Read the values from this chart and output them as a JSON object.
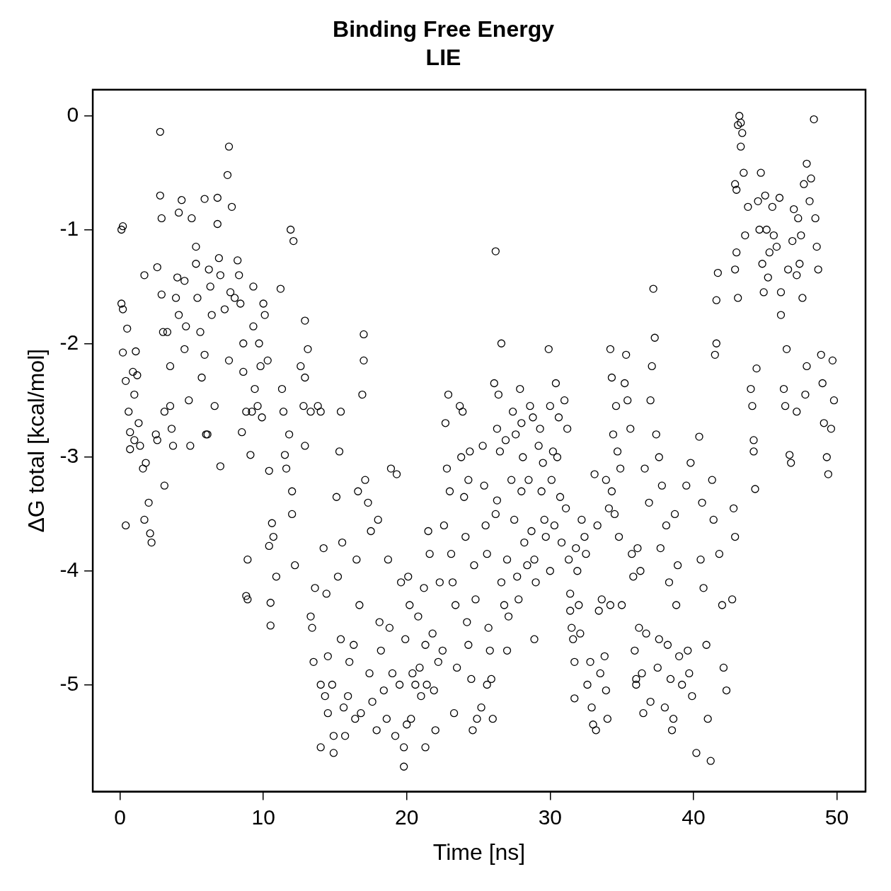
{
  "chart_data": {
    "type": "scatter",
    "title": "Binding Free Energy",
    "subtitle": "LIE",
    "xlabel": "Time [ns]",
    "ylabel": "ΔG total [kcal/mol]",
    "xlim": [
      -1.9,
      52
    ],
    "ylim": [
      -5.94,
      0.23
    ],
    "xticks": [
      0,
      10,
      20,
      30,
      40,
      50
    ],
    "yticks": [
      -5,
      -4,
      -3,
      -2,
      -1,
      0
    ],
    "marker": "circle",
    "legend": false,
    "grid": false,
    "series": [
      {
        "color": "#000000",
        "x": [
          0.1,
          0.2,
          0.1,
          0.2,
          0.2,
          0.4,
          0.5,
          0.6,
          0.7,
          0.7,
          0.4,
          0.9,
          1.0,
          1.0,
          1.1,
          1.2,
          1.3,
          1.4,
          1.6,
          1.8,
          2.0,
          1.7,
          2.1,
          2.2,
          1.7,
          2.5,
          2.6,
          2.6,
          2.8,
          2.8,
          2.9,
          2.9,
          3.0,
          3.1,
          3.1,
          3.3,
          3.5,
          3.5,
          3.6,
          3.7,
          3.9,
          4.1,
          4.0,
          4.1,
          4.3,
          4.5,
          4.6,
          4.5,
          4.8,
          4.9,
          5.3,
          5.3,
          5.0,
          5.4,
          5.6,
          5.9,
          5.7,
          6.0,
          5.9,
          6.2,
          6.3,
          6.4,
          6.6,
          6.1,
          6.8,
          6.8,
          6.9,
          7.0,
          7.3,
          7.0,
          7.6,
          7.5,
          7.8,
          7.7,
          7.6,
          8.0,
          8.2,
          8.3,
          8.4,
          8.6,
          8.6,
          8.8,
          8.5,
          8.9,
          8.9,
          8.8,
          9.3,
          9.3,
          9.4,
          9.2,
          9.1,
          9.7,
          9.8,
          9.6,
          9.9,
          10.0,
          10.1,
          10.3,
          10.4,
          10.4,
          10.6,
          10.5,
          10.5,
          10.7,
          10.9,
          11.2,
          11.3,
          11.4,
          11.5,
          11.6,
          11.9,
          12.1,
          11.8,
          12.0,
          12.0,
          12.2,
          12.6,
          12.8,
          12.9,
          12.9,
          13.1,
          12.9,
          13.3,
          13.3,
          13.4,
          13.5,
          13.6,
          14.0,
          14.0,
          14.3,
          14.5,
          14.5,
          13.8,
          14.0,
          14.2,
          14.4,
          14.8,
          14.9,
          14.9,
          15.1,
          15.2,
          15.4,
          15.6,
          15.7,
          15.4,
          15.3,
          15.5,
          15.9,
          16.0,
          16.3,
          16.4,
          16.6,
          16.5,
          16.7,
          16.8,
          17.0,
          17.0,
          16.9,
          17.1,
          17.3,
          17.5,
          17.4,
          17.6,
          17.9,
          18.0,
          18.1,
          18.2,
          18.4,
          18.6,
          18.9,
          18.7,
          18.8,
          19.0,
          19.2,
          19.3,
          19.6,
          19.5,
          19.8,
          19.8,
          19.9,
          20.0,
          20.1,
          20.2,
          20.4,
          20.3,
          20.6,
          20.8,
          20.9,
          21.0,
          21.2,
          21.3,
          21.4,
          21.3,
          21.5,
          21.6,
          21.8,
          21.9,
          22.0,
          22.2,
          22.3,
          22.5,
          22.6,
          22.8,
          22.9,
          22.7,
          23.0,
          23.1,
          23.2,
          23.4,
          23.5,
          23.3,
          23.7,
          23.9,
          23.8,
          24.0,
          24.1,
          24.2,
          24.3,
          24.5,
          24.6,
          24.4,
          24.3,
          24.7,
          24.8,
          24.9,
          25.2,
          25.3,
          25.4,
          25.5,
          25.6,
          25.7,
          25.8,
          25.9,
          25.6,
          26.0,
          26.2,
          26.1,
          26.4,
          26.3,
          26.5,
          26.3,
          26.2,
          26.6,
          26.8,
          26.6,
          26.9,
          27.0,
          27.1,
          27.0,
          27.4,
          27.6,
          27.3,
          27.5,
          27.7,
          27.8,
          27.9,
          28.0,
          28.1,
          28.0,
          28.2,
          28.4,
          28.6,
          28.8,
          28.5,
          28.7,
          28.9,
          29.0,
          28.9,
          29.3,
          29.2,
          29.5,
          29.4,
          29.6,
          29.7,
          29.9,
          30.0,
          30.2,
          30.1,
          30.3,
          30.0,
          30.4,
          30.6,
          30.5,
          30.7,
          30.8,
          31.0,
          31.2,
          31.1,
          31.3,
          31.4,
          31.6,
          31.4,
          31.5,
          31.7,
          31.8,
          31.9,
          32.0,
          31.7,
          32.2,
          32.1,
          32.4,
          32.6,
          32.5,
          32.8,
          32.9,
          33.0,
          33.1,
          33.3,
          33.4,
          33.5,
          33.2,
          33.6,
          33.8,
          33.9,
          34.0,
          33.9,
          34.1,
          34.2,
          34.2,
          34.3,
          34.4,
          34.3,
          34.5,
          34.6,
          34.7,
          34.9,
          34.8,
          35.0,
          35.3,
          35.2,
          35.4,
          35.6,
          35.7,
          35.8,
          35.9,
          36.0,
          36.1,
          36.3,
          36.2,
          36.0,
          36.5,
          36.6,
          36.9,
          36.7,
          36.4,
          37.0,
          37.2,
          37.3,
          37.1,
          37.0,
          37.4,
          37.6,
          37.8,
          37.7,
          37.6,
          37.5,
          38.0,
          38.1,
          38.3,
          38.2,
          38.4,
          38.6,
          38.7,
          38.9,
          38.8,
          39.0,
          39.2,
          38.5,
          39.5,
          39.8,
          39.6,
          39.7,
          39.9,
          40.2,
          40.4,
          40.6,
          40.5,
          40.7,
          40.9,
          41.0,
          41.2,
          41.6,
          41.5,
          41.6,
          41.7,
          41.3,
          41.4,
          41.8,
          42.0,
          42.1,
          42.3,
          42.7,
          42.8,
          42.9,
          43.1,
          43.2,
          43.3,
          43.4,
          43.3,
          42.9,
          43.0,
          43.0,
          42.9,
          43.1,
          43.6,
          43.5,
          43.8,
          44.0,
          44.1,
          44.2,
          44.2,
          44.3,
          44.7,
          44.5,
          44.6,
          44.8,
          44.9,
          44.4,
          45.0,
          45.1,
          45.3,
          45.2,
          45.5,
          45.6,
          45.8,
          46.0,
          46.1,
          46.1,
          46.3,
          46.5,
          46.4,
          46.7,
          46.8,
          46.6,
          46.9,
          47.2,
          47.0,
          47.3,
          47.7,
          47.9,
          47.6,
          47.5,
          47.4,
          47.9,
          47.8,
          47.2,
          48.2,
          48.4,
          48.1,
          48.5,
          48.6,
          48.7,
          48.9,
          49.0,
          49.1,
          49.3,
          49.4,
          49.7,
          49.8,
          49.6
        ],
        "values": [
          -1.0,
          -0.97,
          -1.65,
          -1.7,
          -2.08,
          -2.33,
          -1.87,
          -2.6,
          -2.78,
          -2.93,
          -3.6,
          -2.25,
          -2.45,
          -2.85,
          -2.07,
          -2.28,
          -2.7,
          -2.9,
          -3.1,
          -3.05,
          -3.4,
          -3.55,
          -3.67,
          -3.75,
          -1.4,
          -2.8,
          -2.85,
          -1.33,
          -0.7,
          -0.14,
          -0.9,
          -1.57,
          -1.9,
          -2.6,
          -3.25,
          -1.9,
          -2.2,
          -2.55,
          -2.75,
          -2.9,
          -1.6,
          -1.75,
          -1.42,
          -0.85,
          -0.74,
          -1.45,
          -1.85,
          -2.05,
          -2.5,
          -2.9,
          -1.15,
          -1.3,
          -0.9,
          -1.6,
          -1.9,
          -2.1,
          -2.3,
          -2.8,
          -0.73,
          -1.35,
          -1.5,
          -1.75,
          -2.55,
          -2.8,
          -0.72,
          -0.95,
          -1.25,
          -1.4,
          -1.7,
          -3.08,
          -0.27,
          -0.52,
          -0.8,
          -1.55,
          -2.15,
          -1.6,
          -1.27,
          -1.4,
          -1.65,
          -2.0,
          -2.25,
          -2.6,
          -2.78,
          -3.9,
          -4.25,
          -4.22,
          -1.5,
          -1.85,
          -2.4,
          -2.6,
          -2.98,
          -2.0,
          -2.2,
          -2.55,
          -2.65,
          -1.65,
          -1.75,
          -2.15,
          -3.12,
          -3.78,
          -3.58,
          -4.28,
          -4.48,
          -3.7,
          -4.05,
          -1.52,
          -2.4,
          -2.6,
          -2.98,
          -3.1,
          -1.0,
          -1.1,
          -2.8,
          -3.3,
          -3.5,
          -3.95,
          -2.2,
          -2.55,
          -2.9,
          -1.8,
          -2.05,
          -2.3,
          -2.6,
          -4.4,
          -4.5,
          -4.8,
          -4.15,
          -5.0,
          -5.55,
          -5.1,
          -4.75,
          -5.25,
          -2.55,
          -2.6,
          -3.8,
          -4.2,
          -5.0,
          -5.45,
          -5.6,
          -3.35,
          -4.05,
          -4.6,
          -5.2,
          -5.45,
          -2.6,
          -2.95,
          -3.75,
          -5.1,
          -4.8,
          -4.65,
          -5.3,
          -3.3,
          -3.9,
          -4.3,
          -5.25,
          -1.92,
          -2.15,
          -2.45,
          -3.2,
          -3.4,
          -3.65,
          -4.9,
          -5.15,
          -5.4,
          -3.55,
          -4.45,
          -4.7,
          -5.05,
          -5.3,
          -3.1,
          -3.9,
          -4.5,
          -4.9,
          -5.45,
          -3.15,
          -4.1,
          -5.0,
          -5.55,
          -5.72,
          -4.6,
          -5.35,
          -4.05,
          -4.3,
          -4.9,
          -5.3,
          -5.0,
          -4.4,
          -4.85,
          -5.1,
          -4.15,
          -4.65,
          -5.0,
          -5.55,
          -3.65,
          -3.85,
          -4.55,
          -5.05,
          -5.4,
          -4.8,
          -4.1,
          -4.7,
          -3.6,
          -3.1,
          -2.45,
          -2.7,
          -3.3,
          -3.85,
          -4.1,
          -4.3,
          -4.85,
          -5.25,
          -2.55,
          -2.6,
          -3.0,
          -3.35,
          -3.7,
          -4.45,
          -4.65,
          -4.95,
          -5.4,
          -2.95,
          -3.2,
          -3.95,
          -4.25,
          -5.3,
          -5.2,
          -2.9,
          -3.25,
          -3.6,
          -3.85,
          -4.5,
          -4.7,
          -4.95,
          -5.0,
          -5.3,
          -1.19,
          -2.35,
          -2.45,
          -2.75,
          -2.95,
          -3.38,
          -3.5,
          -4.1,
          -4.3,
          -2.0,
          -2.85,
          -3.9,
          -4.4,
          -4.7,
          -2.6,
          -2.8,
          -3.2,
          -3.55,
          -4.05,
          -4.25,
          -2.4,
          -2.7,
          -3.0,
          -3.3,
          -3.75,
          -3.95,
          -2.55,
          -2.65,
          -3.2,
          -3.65,
          -3.9,
          -4.1,
          -4.6,
          -2.75,
          -2.9,
          -3.05,
          -3.3,
          -3.55,
          -3.7,
          -2.05,
          -2.55,
          -2.95,
          -3.2,
          -3.6,
          -4.0,
          -2.35,
          -2.65,
          -3.0,
          -3.35,
          -3.75,
          -2.5,
          -2.75,
          -3.45,
          -3.9,
          -4.35,
          -4.6,
          -4.2,
          -4.5,
          -4.8,
          -3.8,
          -4.0,
          -4.3,
          -5.12,
          -3.55,
          -4.55,
          -3.7,
          -5.0,
          -3.85,
          -4.8,
          -5.2,
          -5.35,
          -3.15,
          -3.6,
          -4.35,
          -4.9,
          -5.4,
          -4.25,
          -4.75,
          -5.05,
          -5.3,
          -3.2,
          -3.45,
          -4.3,
          -2.05,
          -2.3,
          -2.8,
          -3.3,
          -3.5,
          -2.55,
          -2.95,
          -3.1,
          -3.7,
          -4.3,
          -2.1,
          -2.35,
          -2.5,
          -2.75,
          -3.85,
          -4.05,
          -4.7,
          -4.95,
          -3.8,
          -4.0,
          -4.5,
          -5.0,
          -5.25,
          -3.1,
          -3.4,
          -4.55,
          -4.9,
          -5.15,
          -1.52,
          -1.95,
          -2.2,
          -2.5,
          -2.8,
          -3.0,
          -3.25,
          -3.8,
          -4.6,
          -4.85,
          -5.2,
          -3.6,
          -4.1,
          -4.65,
          -4.95,
          -5.3,
          -3.5,
          -3.95,
          -4.3,
          -4.75,
          -5.0,
          -5.4,
          -3.25,
          -3.05,
          -4.7,
          -4.9,
          -5.1,
          -5.6,
          -2.82,
          -3.4,
          -3.9,
          -4.15,
          -4.65,
          -5.3,
          -5.67,
          -2.0,
          -2.1,
          -1.62,
          -1.38,
          -3.2,
          -3.55,
          -3.85,
          -4.3,
          -4.85,
          -5.05,
          -4.25,
          -3.45,
          -3.7,
          -0.08,
          0.0,
          -0.06,
          -0.15,
          -0.27,
          -0.6,
          -0.65,
          -1.2,
          -1.35,
          -1.6,
          -1.05,
          -0.5,
          -0.8,
          -2.4,
          -2.55,
          -2.85,
          -2.95,
          -3.28,
          -0.5,
          -0.75,
          -1.0,
          -1.3,
          -1.55,
          -2.22,
          -0.7,
          -1.0,
          -1.2,
          -1.42,
          -0.8,
          -1.05,
          -1.15,
          -0.72,
          -1.55,
          -1.75,
          -2.4,
          -2.05,
          -2.55,
          -2.98,
          -3.05,
          -1.35,
          -1.1,
          -1.4,
          -0.82,
          -0.9,
          -0.6,
          -0.42,
          -1.6,
          -1.05,
          -1.3,
          -2.2,
          -2.45,
          -2.6,
          -0.55,
          -0.03,
          -0.75,
          -0.9,
          -1.15,
          -1.35,
          -2.1,
          -2.35,
          -2.7,
          -3.0,
          -3.15,
          -2.15,
          -2.5,
          -2.75
        ]
      }
    ]
  }
}
